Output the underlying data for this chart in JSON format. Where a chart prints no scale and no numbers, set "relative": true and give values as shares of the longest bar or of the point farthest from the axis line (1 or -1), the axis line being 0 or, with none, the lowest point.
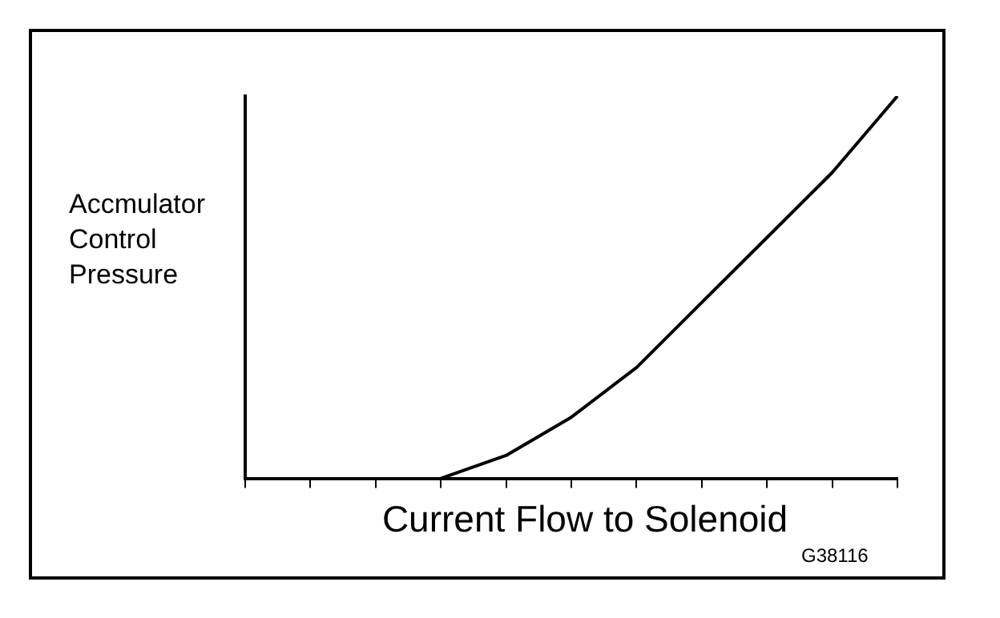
{
  "chart_data": {
    "type": "line",
    "relative": true,
    "xlabel": "Current Flow to Solenoid",
    "ylabel": "Accmulator Control Pressure",
    "categories": [
      null,
      null,
      null,
      null,
      null,
      null,
      null,
      null,
      null,
      null,
      null
    ],
    "series": [
      {
        "color": "#000000",
        "values": [
          null,
          null,
          null,
          0,
          0.06,
          0.16,
          0.29,
          0.46,
          0.63,
          0.8,
          1
        ]
      }
    ],
    "annotations": [
      "G38116"
    ],
    "marker": "none",
    "grid": false,
    "legend": false
  }
}
